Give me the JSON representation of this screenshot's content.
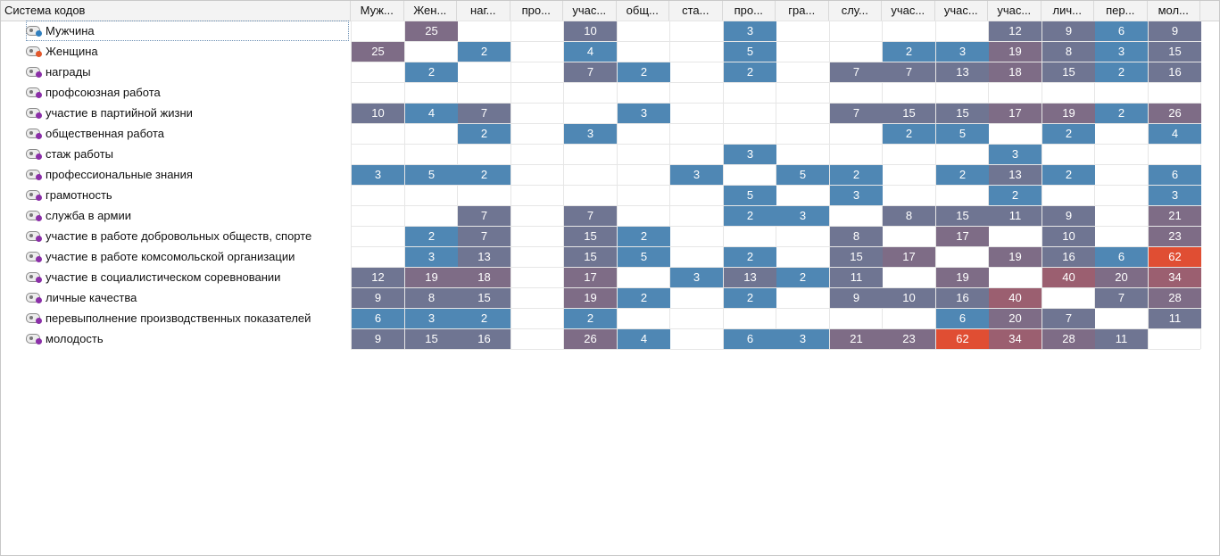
{
  "header": {
    "title": "Система кодов",
    "columns": [
      "Муж...",
      "Жен...",
      "наг...",
      "про...",
      "учас...",
      "общ...",
      "ста...",
      "про...",
      "гра...",
      "слу...",
      "учас...",
      "учас...",
      "учас...",
      "лич...",
      "пер...",
      "мол..."
    ]
  },
  "rows": [
    {
      "label": "Мужчина",
      "marker_color": "#2f7fbf",
      "values": [
        null,
        25,
        null,
        null,
        10,
        null,
        null,
        3,
        null,
        null,
        null,
        null,
        12,
        9,
        6,
        9
      ]
    },
    {
      "label": "Женщина",
      "marker_color": "#e2572b",
      "values": [
        25,
        null,
        2,
        null,
        4,
        null,
        null,
        5,
        null,
        null,
        2,
        3,
        19,
        8,
        3,
        15
      ]
    },
    {
      "label": "награды",
      "marker_color": "#8b2fa8",
      "values": [
        null,
        2,
        null,
        null,
        7,
        2,
        null,
        2,
        null,
        7,
        7,
        13,
        18,
        15,
        2,
        16
      ]
    },
    {
      "label": "профсоюзная работа",
      "marker_color": "#8b2fa8",
      "values": [
        null,
        null,
        null,
        null,
        null,
        null,
        null,
        null,
        null,
        null,
        null,
        null,
        null,
        null,
        null,
        null
      ]
    },
    {
      "label": "участие в партийной жизни",
      "marker_color": "#8b2fa8",
      "values": [
        10,
        4,
        7,
        null,
        null,
        3,
        null,
        null,
        null,
        7,
        15,
        15,
        17,
        19,
        2,
        26
      ]
    },
    {
      "label": "общественная работа",
      "marker_color": "#8b2fa8",
      "values": [
        null,
        null,
        2,
        null,
        3,
        null,
        null,
        null,
        null,
        null,
        2,
        5,
        null,
        2,
        null,
        4
      ]
    },
    {
      "label": "стаж работы",
      "marker_color": "#8b2fa8",
      "values": [
        null,
        null,
        null,
        null,
        null,
        null,
        null,
        3,
        null,
        null,
        null,
        null,
        3,
        null,
        null,
        null
      ]
    },
    {
      "label": "профессиональные знания",
      "marker_color": "#8b2fa8",
      "values": [
        3,
        5,
        2,
        null,
        null,
        null,
        3,
        null,
        5,
        2,
        null,
        2,
        13,
        2,
        null,
        6
      ]
    },
    {
      "label": "грамотность",
      "marker_color": "#8b2fa8",
      "values": [
        null,
        null,
        null,
        null,
        null,
        null,
        null,
        5,
        null,
        3,
        null,
        null,
        2,
        null,
        null,
        3
      ]
    },
    {
      "label": "служба в армии",
      "marker_color": "#8b2fa8",
      "values": [
        null,
        null,
        7,
        null,
        7,
        null,
        null,
        2,
        3,
        null,
        8,
        15,
        11,
        9,
        null,
        21
      ]
    },
    {
      "label": "участие в работе добровольных обществ, спорте",
      "marker_color": "#8b2fa8",
      "values": [
        null,
        2,
        7,
        null,
        15,
        2,
        null,
        null,
        null,
        8,
        null,
        17,
        null,
        10,
        null,
        23
      ]
    },
    {
      "label": "участие в работе комсомольской организации",
      "marker_color": "#8b2fa8",
      "values": [
        null,
        3,
        13,
        null,
        15,
        5,
        null,
        2,
        null,
        15,
        17,
        null,
        19,
        16,
        6,
        62
      ]
    },
    {
      "label": "участие в социалистическом соревновании",
      "marker_color": "#8b2fa8",
      "values": [
        12,
        19,
        18,
        null,
        17,
        null,
        3,
        13,
        2,
        11,
        null,
        19,
        null,
        40,
        20,
        34
      ]
    },
    {
      "label": "личные качества",
      "marker_color": "#8b2fa8",
      "values": [
        9,
        8,
        15,
        null,
        19,
        2,
        null,
        2,
        null,
        9,
        10,
        16,
        40,
        null,
        7,
        28
      ]
    },
    {
      "label": "перевыполнение производственных показателей",
      "marker_color": "#8b2fa8",
      "values": [
        6,
        3,
        2,
        null,
        2,
        null,
        null,
        null,
        null,
        null,
        null,
        6,
        20,
        7,
        null,
        11
      ]
    },
    {
      "label": "молодость",
      "marker_color": "#8b2fa8",
      "values": [
        9,
        15,
        16,
        null,
        26,
        4,
        null,
        6,
        3,
        21,
        23,
        62,
        34,
        28,
        11,
        null
      ]
    }
  ],
  "colors": {
    "low": "#4f87b4",
    "mid": "#6f7592",
    "midhigh": "#7e6c86",
    "high": "#9b5f70",
    "max": "#e04e33"
  }
}
